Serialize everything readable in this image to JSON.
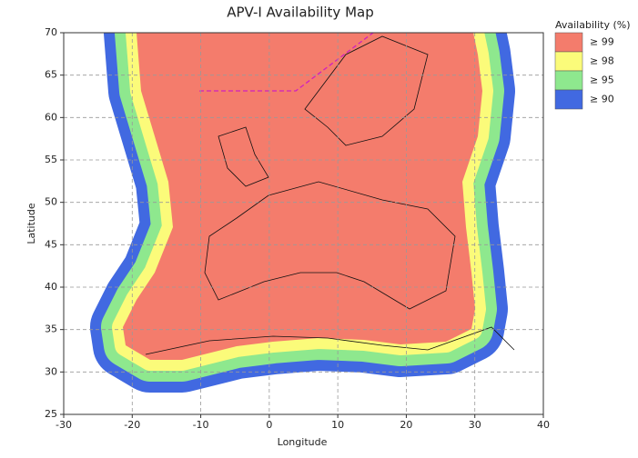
{
  "chart_data": {
    "type": "map",
    "title": "APV-I Availability Map",
    "xlabel": "Longitude",
    "ylabel": "Latitude",
    "xlim": [
      -30,
      40
    ],
    "ylim": [
      25,
      70
    ],
    "xticks": [
      -30,
      -20,
      -10,
      0,
      10,
      20,
      30,
      40
    ],
    "yticks": [
      25,
      30,
      35,
      40,
      45,
      50,
      55,
      60,
      65,
      70
    ],
    "grid": true,
    "legend_title": "Availability (%)",
    "legend_position": "right",
    "series": [
      {
        "name": "≥ 99",
        "color": "#f47c6c"
      },
      {
        "name": "≥ 98",
        "color": "#fbfb7a"
      },
      {
        "name": "≥ 95",
        "color": "#8ee88e"
      },
      {
        "name": "≥ 90",
        "color": "#4169e1"
      }
    ]
  }
}
